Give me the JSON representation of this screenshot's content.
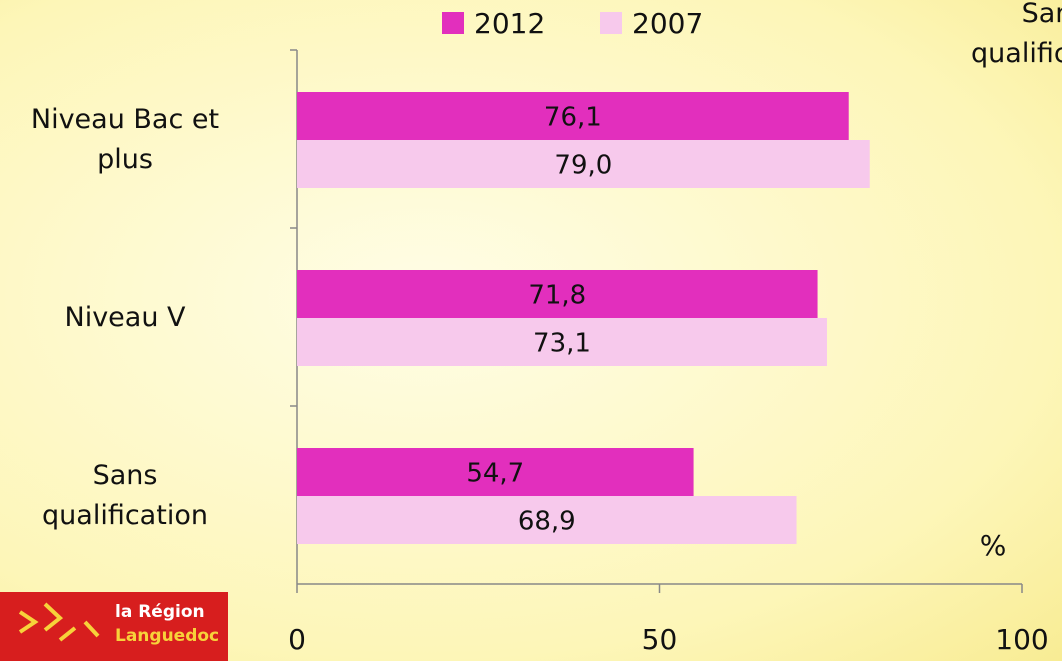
{
  "chart_data": {
    "type": "bar",
    "orientation": "horizontal",
    "categories": [
      "Niveau Bac et\nplus",
      "Niveau V",
      "Sans\nqualification"
    ],
    "series": [
      {
        "name": "2012",
        "color": "#e22fbd",
        "values": [
          76.1,
          71.8,
          54.7
        ],
        "value_labels": [
          "76,1",
          "71,8",
          "54,7"
        ]
      },
      {
        "name": "2007",
        "color": "#f7c9ec",
        "values": [
          79.0,
          73.1,
          68.9
        ],
        "value_labels": [
          "79,0",
          "73,1",
          "68,9"
        ]
      }
    ],
    "xlim": [
      0,
      100
    ],
    "xticks": [
      0,
      50,
      100
    ],
    "unit_label": "%",
    "legend": "top",
    "side_text": "Sans\nqualification"
  },
  "logo": {
    "line1": "la Région",
    "line2": "Languedoc"
  }
}
